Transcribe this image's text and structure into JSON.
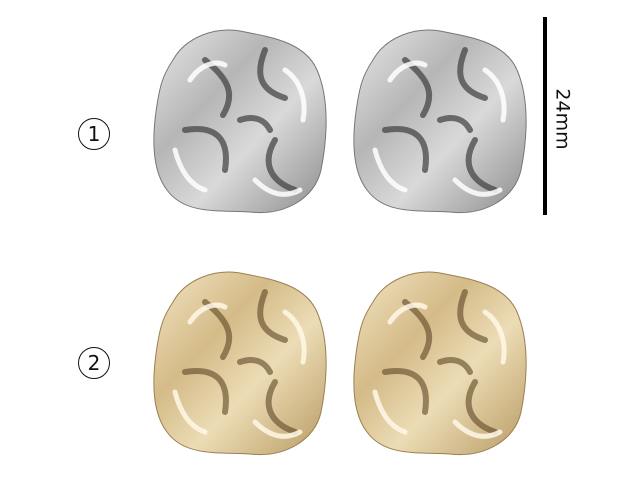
{
  "rows": [
    {
      "label": "1",
      "finish": "silver",
      "colors": {
        "light": "#f4f4f4",
        "mid": "#b9b9b9",
        "dark": "#4a4a4a"
      }
    },
    {
      "label": "2",
      "finish": "gold",
      "colors": {
        "light": "#fff5df",
        "mid": "#dbc497",
        "dark": "#6e5532"
      }
    }
  ],
  "scale": {
    "label": "24mm"
  }
}
